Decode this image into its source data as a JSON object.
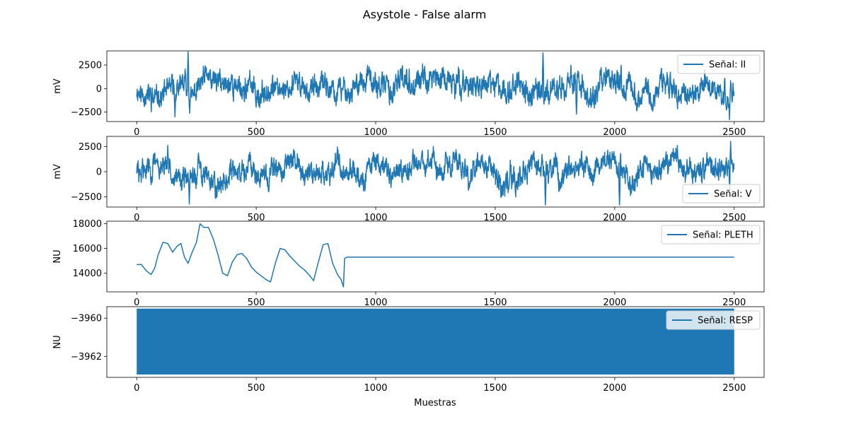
{
  "figure": {
    "title": "Asystole - False alarm",
    "xlabel": "Muestras"
  },
  "chart_data": [
    {
      "type": "line",
      "series": [
        {
          "name": "Señal: II",
          "color": "#1f77b4"
        }
      ],
      "ylabel": "mV",
      "xlim": [
        -125,
        2625
      ],
      "ylim": [
        -3500,
        4000
      ],
      "xticks": [
        0,
        500,
        1000,
        1500,
        2000,
        2500
      ],
      "xtick_labels": [
        "0",
        "500",
        "1000",
        "1500",
        "2000",
        "2500"
      ],
      "yticks": [
        -2500,
        0,
        2500
      ],
      "ytick_labels": [
        "−2500",
        "0",
        "2500"
      ],
      "legend": "upper right",
      "signal": {
        "kind": "noise",
        "n": 2500,
        "amplitude": 1100,
        "seed": 11,
        "peaks": [
          [
            215,
            3900
          ],
          [
            1700,
            3800
          ],
          [
            2480,
            -3300
          ],
          [
            160,
            -3000
          ],
          [
            1840,
            -2700
          ]
        ]
      }
    },
    {
      "type": "line",
      "series": [
        {
          "name": "Señal: V",
          "color": "#1f77b4"
        }
      ],
      "ylabel": "mV",
      "xlim": [
        -125,
        2625
      ],
      "ylim": [
        -3500,
        3500
      ],
      "xticks": [
        0,
        500,
        1000,
        1500,
        2000,
        2500
      ],
      "xtick_labels": [
        "0",
        "500",
        "1000",
        "1500",
        "2000",
        "2500"
      ],
      "yticks": [
        -2500,
        0,
        2500
      ],
      "ytick_labels": [
        "−2500",
        "0",
        "2500"
      ],
      "legend": "lower right",
      "signal": {
        "kind": "noise",
        "n": 2500,
        "amplitude": 1000,
        "seed": 29,
        "peaks": [
          [
            220,
            -3200
          ],
          [
            1710,
            -3300
          ],
          [
            2020,
            -3300
          ],
          [
            2485,
            3000
          ],
          [
            130,
            2600
          ]
        ]
      }
    },
    {
      "type": "line",
      "series": [
        {
          "name": "Señal: PLETH",
          "color": "#1f77b4"
        }
      ],
      "ylabel": "NU",
      "xlim": [
        -125,
        2625
      ],
      "ylim": [
        12500,
        18200
      ],
      "xticks": [
        0,
        500,
        1000,
        1500,
        2000,
        2500
      ],
      "xtick_labels": [
        "0",
        "500",
        "1000",
        "1500",
        "2000",
        "2500"
      ],
      "yticks": [
        14000,
        16000,
        18000
      ],
      "ytick_labels": [
        "14000",
        "16000",
        "18000"
      ],
      "legend": "upper right",
      "signal": {
        "kind": "points",
        "x": [
          0,
          20,
          40,
          60,
          75,
          90,
          110,
          130,
          150,
          170,
          185,
          200,
          215,
          230,
          250,
          265,
          280,
          300,
          320,
          340,
          360,
          380,
          400,
          420,
          440,
          460,
          480,
          500,
          520,
          540,
          560,
          580,
          600,
          620,
          640,
          660,
          680,
          700,
          720,
          740,
          760,
          780,
          800,
          820,
          840,
          855,
          865,
          870,
          880,
          2500
        ],
        "y": [
          14700,
          14700,
          14200,
          13900,
          14400,
          15500,
          16500,
          16400,
          15700,
          16200,
          16400,
          15300,
          14800,
          15600,
          16500,
          18000,
          17700,
          17700,
          16800,
          15500,
          14000,
          13800,
          14900,
          15500,
          15600,
          15200,
          14500,
          14100,
          13800,
          13500,
          13300,
          14800,
          16000,
          15900,
          15400,
          15000,
          14600,
          14300,
          13900,
          13400,
          14900,
          16300,
          16400,
          14800,
          13900,
          13500,
          12900,
          15200,
          15300,
          15300
        ]
      }
    },
    {
      "type": "area",
      "series": [
        {
          "name": "Señal: RESP",
          "color": "#1f77b4"
        }
      ],
      "ylabel": "NU",
      "xlim": [
        -125,
        2625
      ],
      "ylim": [
        -3963.1,
        -3959.4
      ],
      "xticks": [
        0,
        500,
        1000,
        1500,
        2000,
        2500
      ],
      "xtick_labels": [
        "0",
        "500",
        "1000",
        "1500",
        "2000",
        "2500"
      ],
      "yticks": [
        -3962,
        -3960
      ],
      "ytick_labels": [
        "−3962",
        "−3960"
      ],
      "legend": "upper right",
      "signal": {
        "kind": "band",
        "x": [
          0,
          2500
        ],
        "y_min": -3962.95,
        "y_max": -3959.5
      }
    }
  ]
}
